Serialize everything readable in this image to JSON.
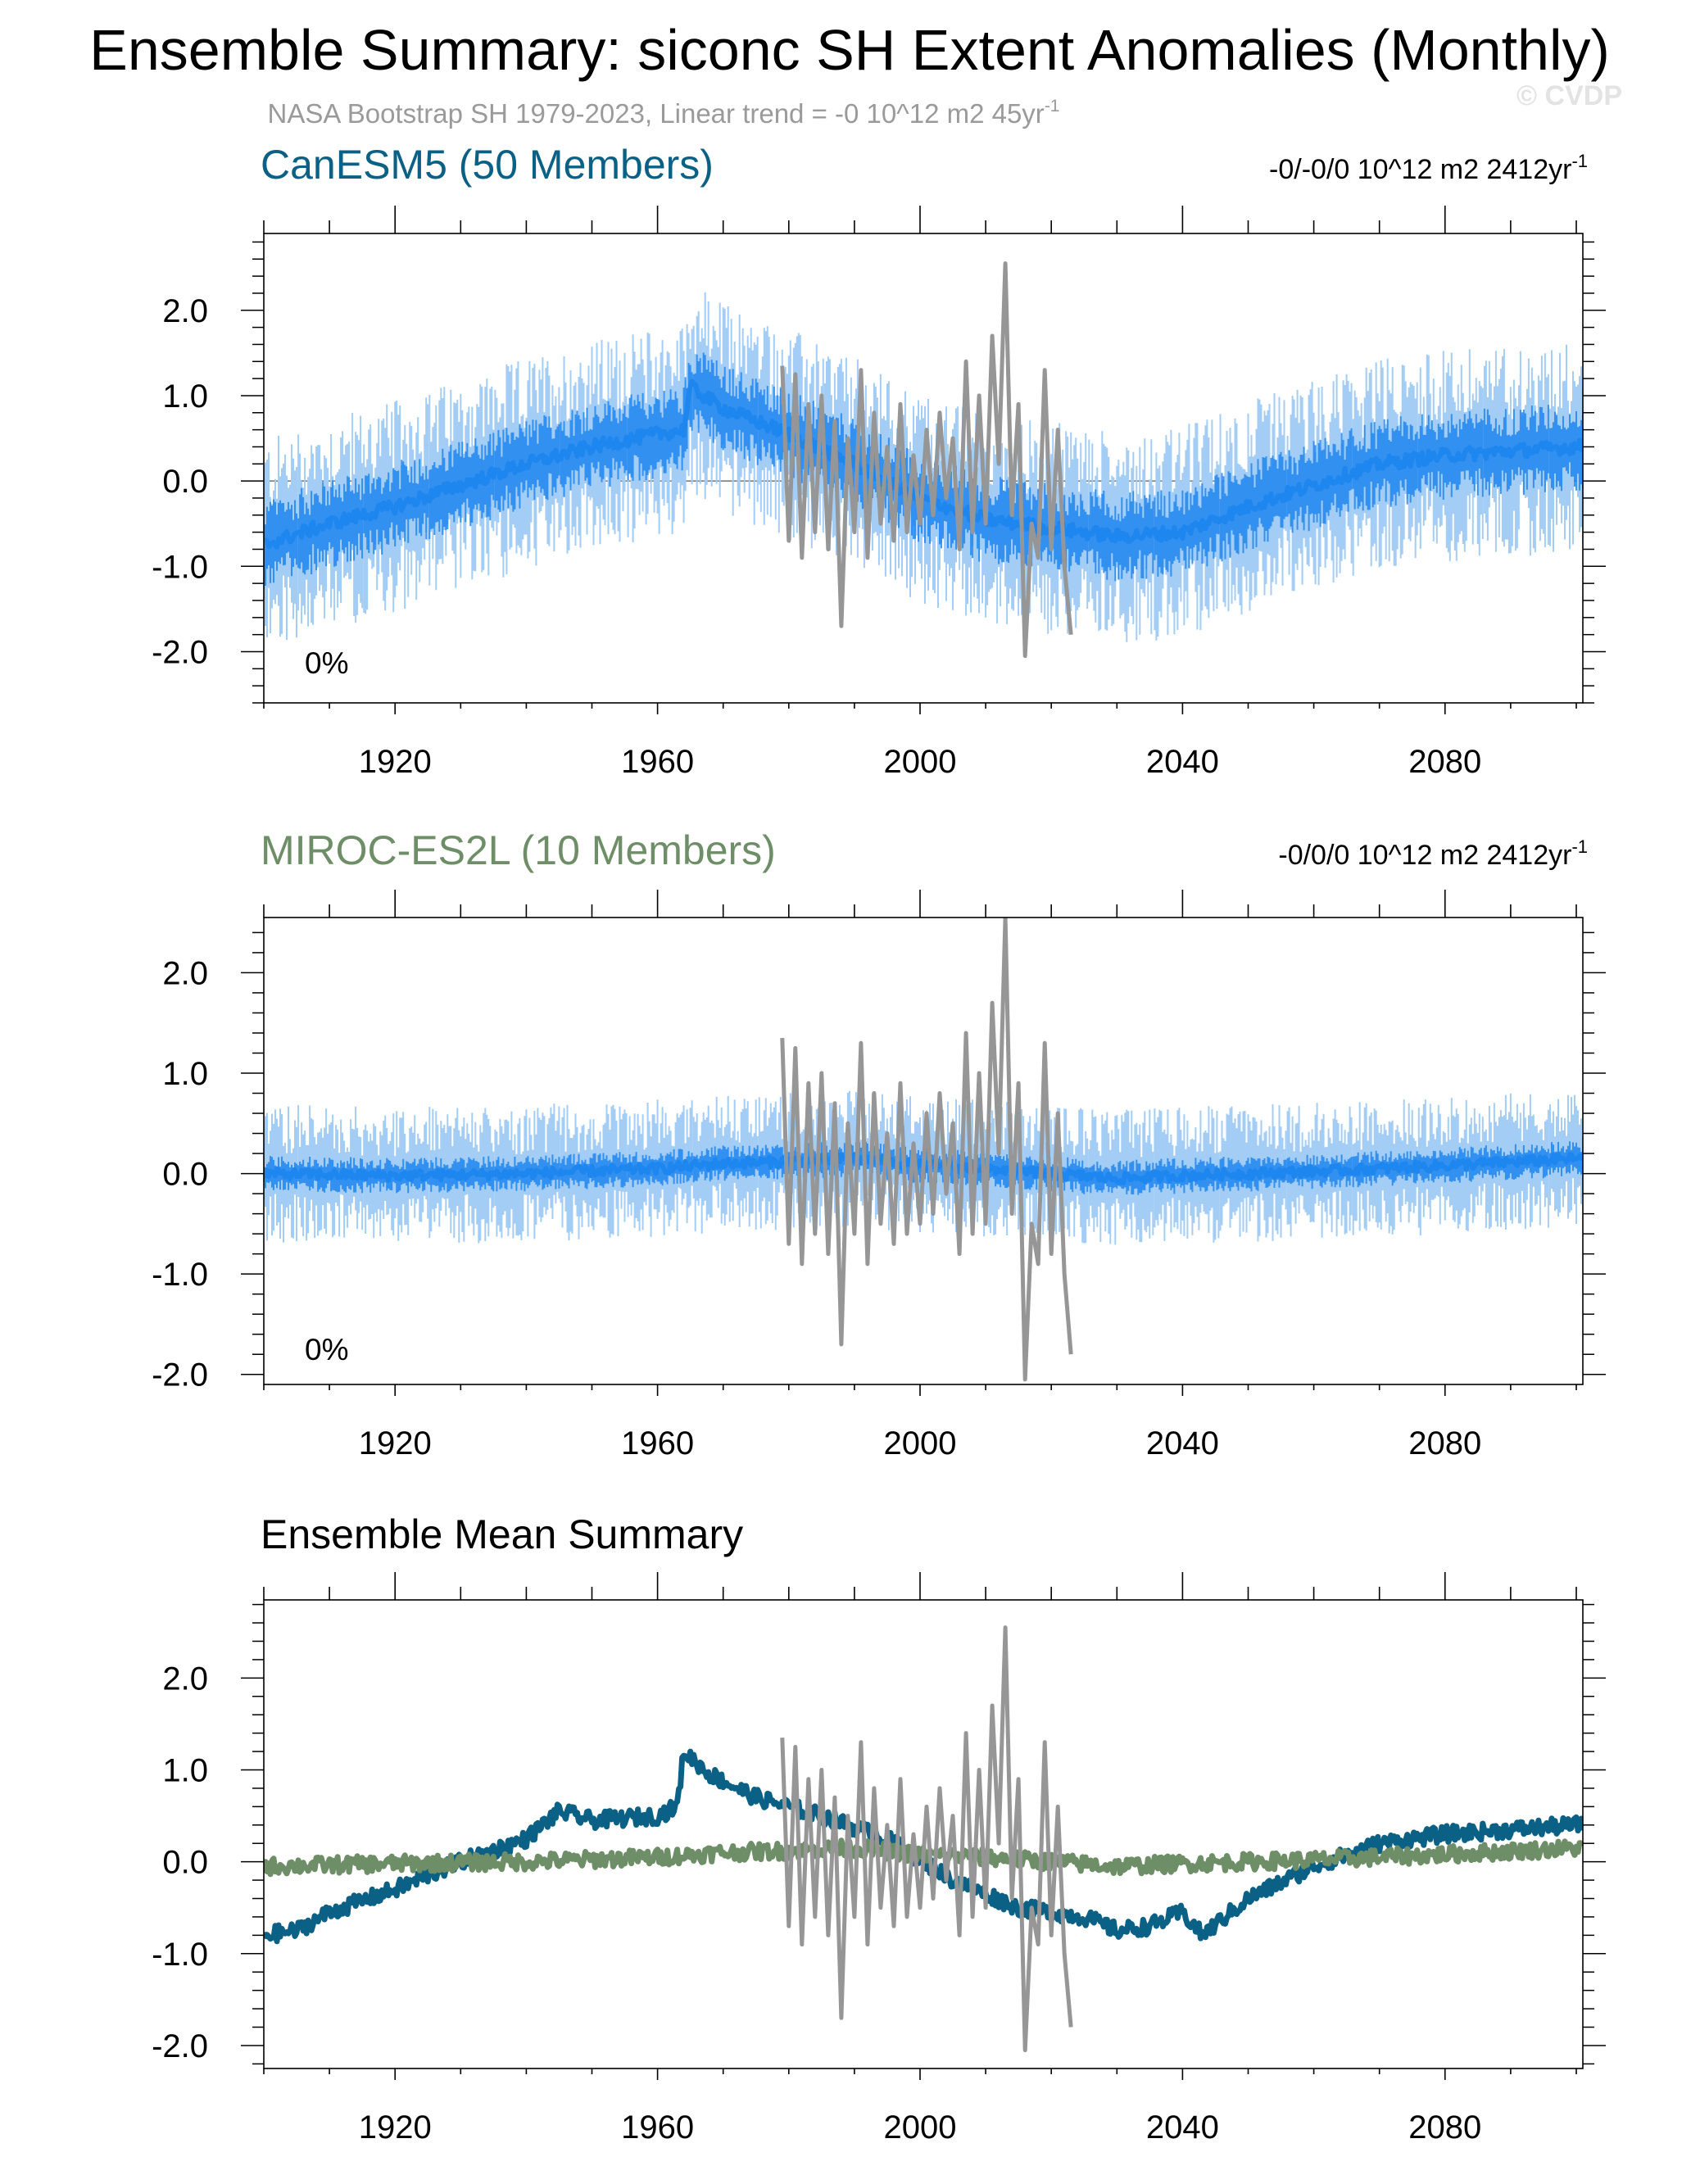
{
  "header": {
    "title": "Ensemble Summary: siconc SH Extent Anomalies (Monthly)",
    "subtitle_main": "NASA Bootstrap SH 1979-2023, Linear trend = -0 10^12 m2 45yr",
    "subtitle_sup": "-1",
    "watermark": "© CVDP"
  },
  "colors": {
    "canesm5": "#0b6185",
    "canesm5_band": "#1e86ef",
    "canesm5_range": "#a3cdf5",
    "miroc": "#6e8e67",
    "obs": "#969696",
    "axis": "#000000"
  },
  "panels": [
    {
      "title": "CanESM5 (50 Members)",
      "title_color": "#0b6185",
      "trend_main": "-0/-0/0 10^12 m2 2412yr",
      "trend_sup": "-1",
      "percent_label": "0%"
    },
    {
      "title": "MIROC-ES2L (10 Members)",
      "title_color": "#6e8e67",
      "trend_main": "-0/0/0 10^12 m2 2412yr",
      "trend_sup": "-1",
      "percent_label": "0%"
    },
    {
      "title": "Ensemble Mean Summary",
      "title_color": "#000000",
      "trend_main": "",
      "trend_sup": "",
      "percent_label": ""
    }
  ],
  "chart_data": [
    {
      "type": "line",
      "title": "CanESM5 (50 Members)",
      "xlim": [
        1900,
        2101
      ],
      "ylim": [
        -2.6,
        2.9
      ],
      "x_ticks": [
        1920,
        1960,
        2000,
        2040,
        2080
      ],
      "x_tick_labels": [
        "1920",
        "1960",
        "2000",
        "2040",
        "2080"
      ],
      "y_ticks": [
        2.0,
        1.0,
        0.0,
        -1.0,
        -2.0
      ],
      "y_tick_labels": [
        "2.0",
        "1.0",
        "0.0",
        "-1.0",
        "-2.0"
      ],
      "zero_line": true,
      "series": [
        {
          "name": "CanESM5 ensemble mean",
          "role": "mean",
          "color": "#1e86ef",
          "x": [
            1900,
            1910,
            1920,
            1930,
            1940,
            1950,
            1960,
            1964,
            1965,
            1970,
            1980,
            1990,
            2000,
            2010,
            2020,
            2030,
            2040,
            2050,
            2060,
            2070,
            2080,
            2090,
            2100
          ],
          "values": [
            -0.75,
            -0.5,
            -0.3,
            -0.05,
            0.2,
            0.4,
            0.55,
            0.6,
            1.1,
            0.85,
            0.55,
            0.2,
            -0.2,
            -0.45,
            -0.55,
            -0.65,
            -0.6,
            -0.3,
            -0.05,
            0.2,
            0.3,
            0.35,
            0.4
          ]
        },
        {
          "name": "NASA Bootstrap SH",
          "role": "obs",
          "color": "#969696",
          "x_range": [
            1979,
            2023
          ],
          "values": [
            1.35,
            -0.7,
            1.25,
            -0.9,
            0.9,
            -0.6,
            1.0,
            -0.8,
            0.7,
            -1.7,
            0.5,
            -0.6,
            1.3,
            -0.9,
            0.8,
            -0.5,
            0.4,
            -0.7,
            0.9,
            -0.6,
            0.3,
            -0.5,
            0.6,
            -0.4,
            0.8,
            -0.2,
            0.5,
            -0.8,
            1.4,
            -0.6,
            1.0,
            -0.5,
            1.7,
            0.2,
            2.55,
            -0.4,
            0.9,
            -2.05,
            -0.5,
            -0.9,
            1.3,
            -0.8,
            0.6,
            -1.0,
            -1.8
          ]
        }
      ]
    },
    {
      "type": "line",
      "title": "MIROC-ES2L (10 Members)",
      "xlim": [
        1900,
        2101
      ],
      "ylim": [
        -2.1,
        2.55
      ],
      "x_ticks": [
        1920,
        1960,
        2000,
        2040,
        2080
      ],
      "x_tick_labels": [
        "1920",
        "1960",
        "2000",
        "2040",
        "2080"
      ],
      "y_ticks": [
        2.0,
        1.0,
        0.0,
        -1.0,
        -2.0
      ],
      "y_tick_labels": [
        "2.0",
        "1.0",
        "0.0",
        "-1.0",
        "-2.0"
      ],
      "zero_line": false,
      "series": [
        {
          "name": "MIROC-ES2L ensemble mean",
          "role": "mean",
          "color": "#1e86ef",
          "x": [
            1900,
            1920,
            1940,
            1960,
            1970,
            1980,
            1990,
            2000,
            2010,
            2020,
            2030,
            2040,
            2060,
            2080,
            2100
          ],
          "values": [
            0.0,
            -0.02,
            0.0,
            0.05,
            0.1,
            0.12,
            0.15,
            0.08,
            0.05,
            0.0,
            -0.05,
            -0.02,
            0.02,
            0.08,
            0.15
          ]
        },
        {
          "name": "NASA Bootstrap SH",
          "role": "obs",
          "color": "#969696",
          "x_range": [
            1979,
            2023
          ],
          "values": [
            1.35,
            -0.7,
            1.25,
            -0.9,
            0.9,
            -0.6,
            1.0,
            -0.8,
            0.7,
            -1.7,
            0.5,
            -0.6,
            1.3,
            -0.9,
            0.8,
            -0.5,
            0.4,
            -0.7,
            0.9,
            -0.6,
            0.3,
            -0.5,
            0.6,
            -0.4,
            0.8,
            -0.2,
            0.5,
            -0.8,
            1.4,
            -0.6,
            1.0,
            -0.5,
            1.7,
            0.2,
            2.55,
            -0.4,
            0.9,
            -2.05,
            -0.5,
            -0.9,
            1.3,
            -0.8,
            0.6,
            -1.0,
            -1.8
          ]
        }
      ]
    },
    {
      "type": "line",
      "title": "Ensemble Mean Summary",
      "xlim": [
        1900,
        2101
      ],
      "ylim": [
        -2.25,
        2.85
      ],
      "x_ticks": [
        1920,
        1960,
        2000,
        2040,
        2080
      ],
      "x_tick_labels": [
        "1920",
        "1960",
        "2000",
        "2040",
        "2080"
      ],
      "y_ticks": [
        2.0,
        1.0,
        0.0,
        -1.0,
        -2.0
      ],
      "y_tick_labels": [
        "2.0",
        "1.0",
        "0.0",
        "-1.0",
        "-2.0"
      ],
      "zero_line": false,
      "series": [
        {
          "name": "CanESM5",
          "role": "mean",
          "color": "#0b6185",
          "x": [
            1900,
            1905,
            1910,
            1920,
            1930,
            1940,
            1945,
            1950,
            1960,
            1963,
            1964,
            1968,
            1975,
            1985,
            1995,
            2005,
            2015,
            2025,
            2030,
            2035,
            2040,
            2043,
            2050,
            2060,
            2070,
            2080,
            2090,
            2100
          ],
          "values": [
            -0.8,
            -0.75,
            -0.55,
            -0.3,
            0.0,
            0.25,
            0.55,
            0.45,
            0.5,
            0.6,
            1.2,
            0.95,
            0.7,
            0.5,
            0.25,
            -0.2,
            -0.5,
            -0.6,
            -0.75,
            -0.7,
            -0.55,
            -0.8,
            -0.4,
            -0.05,
            0.2,
            0.3,
            0.35,
            0.4
          ]
        },
        {
          "name": "MIROC-ES2L",
          "role": "mean",
          "color": "#6e8e67",
          "x": [
            1900,
            1920,
            1940,
            1960,
            1970,
            1980,
            1990,
            2000,
            2010,
            2020,
            2030,
            2040,
            2060,
            2080,
            2100
          ],
          "values": [
            -0.05,
            -0.02,
            0.0,
            0.05,
            0.1,
            0.12,
            0.15,
            0.08,
            0.05,
            0.0,
            -0.05,
            -0.02,
            0.02,
            0.08,
            0.15
          ]
        },
        {
          "name": "NASA Bootstrap SH",
          "role": "obs",
          "color": "#969696",
          "x_range": [
            1979,
            2023
          ],
          "values": [
            1.35,
            -0.7,
            1.25,
            -0.9,
            0.9,
            -0.6,
            1.0,
            -0.8,
            0.7,
            -1.7,
            0.5,
            -0.6,
            1.3,
            -0.9,
            0.8,
            -0.5,
            0.4,
            -0.7,
            0.9,
            -0.6,
            0.3,
            -0.5,
            0.6,
            -0.4,
            0.8,
            -0.2,
            0.5,
            -0.8,
            1.4,
            -0.6,
            1.0,
            -0.5,
            1.7,
            0.2,
            2.55,
            -0.4,
            0.9,
            -2.05,
            -0.5,
            -0.9,
            1.3,
            -0.8,
            0.6,
            -1.0,
            -1.8
          ]
        }
      ]
    }
  ]
}
